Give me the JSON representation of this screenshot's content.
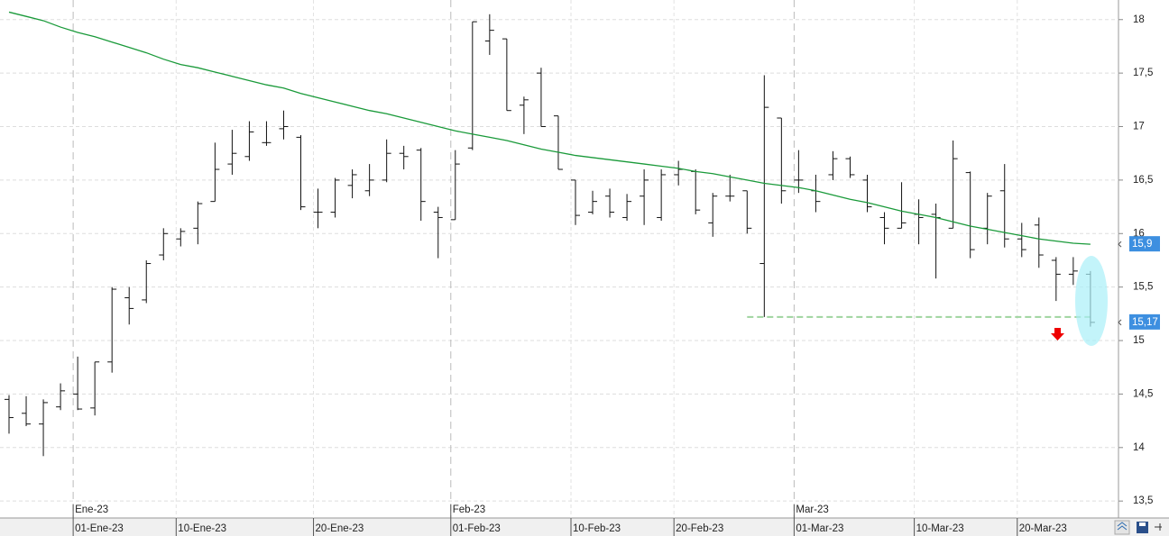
{
  "chart_data": {
    "type": "ohlc",
    "categories": [
      null,
      null,
      null,
      null,
      "01-Ene-23",
      null,
      null,
      null,
      null,
      null,
      "10-Ene-23",
      null,
      null,
      null,
      null,
      null,
      null,
      null,
      "20-Ene-23",
      null,
      null,
      null,
      null,
      null,
      null,
      null,
      "01-Feb-23",
      null,
      null,
      null,
      null,
      null,
      null,
      "10-Feb-23",
      null,
      null,
      null,
      null,
      null,
      "20-Feb-23",
      null,
      null,
      null,
      null,
      null,
      null,
      "01-Mar-23",
      null,
      null,
      null,
      null,
      null,
      null,
      "10-Mar-23",
      null,
      null,
      null,
      null,
      null,
      "20-Mar-23",
      null,
      null,
      null,
      null
    ],
    "months": [
      null,
      null,
      null,
      null,
      "Ene-23",
      null,
      null,
      null,
      null,
      null,
      null,
      null,
      null,
      null,
      null,
      null,
      null,
      null,
      null,
      null,
      null,
      null,
      null,
      null,
      null,
      null,
      "Feb-23",
      null,
      null,
      null,
      null,
      null,
      null,
      null,
      null,
      null,
      null,
      null,
      null,
      null,
      null,
      null,
      null,
      null,
      null,
      null,
      "Mar-23",
      null,
      null,
      null,
      null,
      null,
      null,
      null,
      null,
      null,
      null,
      null,
      null,
      null,
      null,
      null,
      null,
      null
    ],
    "open": [
      14.45,
      14.32,
      14.22,
      14.38,
      14.5,
      14.37,
      14.8,
      15.4,
      15.38,
      15.8,
      15.95,
      16.05,
      16.3,
      16.65,
      16.72,
      16.85,
      16.98,
      16.9,
      16.2,
      16.2,
      16.45,
      16.4,
      16.5,
      16.75,
      16.78,
      16.2,
      16.13,
      16.8,
      17.8,
      17.82,
      17.2,
      17.5,
      17.1,
      16.5,
      16.2,
      16.35,
      16.15,
      16.35,
      16.15,
      16.55,
      16.58,
      16.1,
      16.35,
      16.4,
      15.72,
      17.08,
      16.5,
      16.4,
      16.55,
      16.7,
      16.5,
      16.15,
      16.05,
      16.18,
      16.18,
      16.05,
      16.57,
      16.05,
      16.4,
      15.95,
      16.08,
      15.75,
      15.62,
      15.62
    ],
    "high": [
      14.49,
      14.48,
      14.45,
      14.6,
      14.85,
      14.8,
      15.5,
      15.5,
      15.75,
      16.05,
      16.05,
      16.3,
      16.85,
      16.97,
      17.05,
      17.05,
      17.15,
      16.92,
      16.42,
      16.52,
      16.6,
      16.65,
      16.88,
      16.82,
      16.8,
      16.25,
      16.78,
      17.98,
      18.05,
      17.82,
      17.28,
      17.55,
      17.1,
      16.5,
      16.4,
      16.42,
      16.37,
      16.6,
      16.6,
      16.68,
      16.6,
      16.38,
      16.55,
      16.4,
      17.48,
      17.08,
      16.78,
      16.55,
      16.77,
      16.72,
      16.55,
      16.2,
      16.48,
      16.32,
      16.28,
      16.87,
      16.58,
      16.38,
      16.65,
      16.1,
      16.15,
      15.78,
      15.78,
      15.65
    ],
    "low": [
      14.13,
      14.2,
      13.92,
      14.35,
      14.35,
      14.3,
      14.7,
      15.15,
      15.35,
      15.75,
      15.88,
      15.9,
      16.3,
      16.55,
      16.68,
      16.82,
      16.88,
      16.22,
      16.05,
      16.15,
      16.33,
      16.35,
      16.48,
      16.6,
      16.12,
      15.77,
      16.13,
      16.78,
      17.67,
      17.15,
      16.93,
      17.0,
      16.6,
      16.08,
      16.18,
      16.15,
      16.12,
      16.08,
      16.12,
      16.45,
      16.18,
      15.97,
      16.3,
      16.0,
      15.22,
      16.28,
      16.38,
      16.2,
      16.5,
      16.52,
      16.2,
      15.9,
      16.05,
      15.9,
      15.58,
      16.05,
      15.77,
      15.9,
      15.87,
      15.78,
      15.68,
      15.37,
      15.52,
      15.13
    ],
    "close": [
      14.28,
      14.22,
      14.42,
      14.53,
      14.36,
      14.8,
      15.48,
      15.3,
      15.72,
      16.0,
      16.02,
      16.28,
      16.6,
      16.75,
      16.95,
      16.85,
      17.0,
      16.25,
      16.2,
      16.5,
      16.55,
      16.5,
      16.75,
      16.72,
      16.3,
      16.15,
      16.65,
      17.98,
      17.9,
      17.15,
      17.25,
      17.0,
      16.6,
      16.17,
      16.3,
      16.2,
      16.3,
      16.5,
      16.55,
      16.6,
      16.22,
      16.35,
      16.35,
      16.05,
      17.18,
      16.4,
      16.5,
      16.3,
      16.7,
      16.55,
      16.25,
      16.05,
      16.1,
      16.15,
      16.15,
      16.7,
      15.85,
      16.35,
      15.95,
      15.85,
      15.8,
      15.62,
      15.65,
      15.17
    ],
    "bar_color": "#111111",
    "ma": {
      "color": "#1a9a3a",
      "values": [
        18.07,
        18.03,
        17.99,
        17.93,
        17.88,
        17.84,
        17.79,
        17.74,
        17.69,
        17.63,
        17.58,
        17.55,
        17.51,
        17.47,
        17.43,
        17.39,
        17.36,
        17.31,
        17.27,
        17.23,
        17.19,
        17.15,
        17.12,
        17.08,
        17.04,
        17.0,
        16.96,
        16.93,
        16.9,
        16.87,
        16.83,
        16.79,
        16.76,
        16.73,
        16.71,
        16.69,
        16.67,
        16.65,
        16.63,
        16.61,
        16.58,
        16.56,
        16.53,
        16.5,
        16.47,
        16.45,
        16.43,
        16.4,
        16.36,
        16.32,
        16.29,
        16.25,
        16.21,
        16.18,
        16.15,
        16.11,
        16.07,
        16.04,
        16.01,
        15.98,
        15.95,
        15.93,
        15.91,
        15.9
      ]
    },
    "support": {
      "value": 15.22,
      "from": 43,
      "color": "#9fd49f"
    },
    "price_labels": [
      {
        "value": 15.9,
        "label": "15,9"
      },
      {
        "value": 15.17,
        "label": "15,17"
      }
    ],
    "ylim": [
      13.35,
      18.2
    ],
    "yticks": [
      {
        "value": 13.5,
        "label": "13,5"
      },
      14,
      {
        "value": 14.5,
        "label": "14,5"
      },
      15,
      {
        "value": 15.5,
        "label": "15,5"
      },
      16,
      {
        "value": 16.5,
        "label": "16,5"
      },
      17,
      {
        "value": 17.5,
        "label": "17,5"
      },
      18
    ],
    "grid": true
  }
}
